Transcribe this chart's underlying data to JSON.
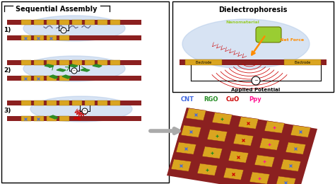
{
  "bg_color": "#f5f5f5",
  "title_left": "Sequential Assembly",
  "title_right": "Dielectrophoresis",
  "bar_color": "#8B2020",
  "electrode_color": "#DAA520",
  "cnt_color": "#4169E1",
  "rgo_color": "#228B22",
  "cuo_color": "#CC0000",
  "ppy_color": "#FF1493",
  "nanomaterial_color": "#9ACD32",
  "net_force_color": "#FF8C00",
  "field_line_color": "#CC0000",
  "bubble_color": "#B0C8E8",
  "applied_potential_text": "Applied Potential",
  "nanomaterial_text": "Nanomaterial",
  "net_force_text": "Net Force",
  "electrode_text": "Electrode",
  "cnt_text": "CNT",
  "rgo_text": "RGO",
  "cuo_text": "CuO",
  "ppy_text": "Ppy",
  "grid_color": "#8B2020",
  "grid_cell_color": "#DAA520"
}
